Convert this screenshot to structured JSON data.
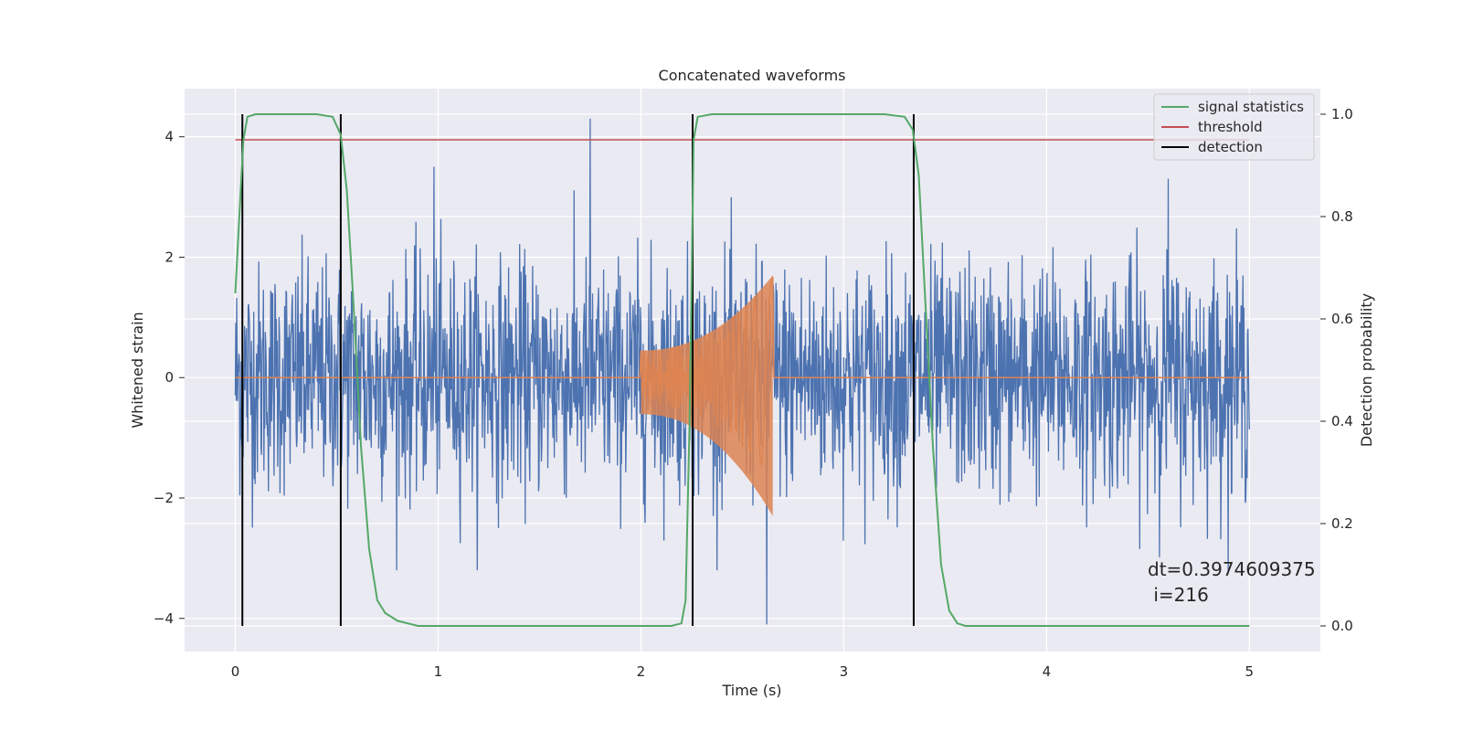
{
  "chart_data": {
    "type": "line",
    "title": "Concatenated waveforms",
    "xlabel": "Time (s)",
    "ylabel": "Whitened strain",
    "ylabel_right": "Detection probability",
    "xlim": [
      -0.25,
      5.35
    ],
    "ylim": [
      -4.55,
      4.8
    ],
    "ylim_right": [
      -0.05,
      1.05
    ],
    "xticks": [
      0,
      1,
      2,
      3,
      4,
      5
    ],
    "yticks": [
      -4,
      -2,
      0,
      2,
      4
    ],
    "yticks_right": [
      0.0,
      0.2,
      0.4,
      0.6,
      0.8,
      1.0
    ],
    "grid": true,
    "legend_position": "top-right",
    "legend": [
      {
        "label": "signal statistics",
        "color": "#55a868"
      },
      {
        "label": "threshold",
        "color": "#c44e52"
      },
      {
        "label": "detection",
        "color": "#000000"
      }
    ],
    "noise_series": {
      "color": "#4c72b0",
      "x_range": [
        0,
        5
      ],
      "typical_amplitude": 1.7,
      "notable_peaks": [
        {
          "x": 1.75,
          "y": 4.3
        },
        {
          "x": 0.98,
          "y": 3.5
        },
        {
          "x": 2.62,
          "y": -4.1
        },
        {
          "x": 4.6,
          "y": 3.3
        }
      ]
    },
    "injected_signal": {
      "color": "#dd8452",
      "start": 2.0,
      "end": 2.65,
      "start_amplitude": 0.45,
      "peak_amplitude": 1.7,
      "peak_min": -2.3
    },
    "series": [
      {
        "name": "signal statistics",
        "axis": "right",
        "color": "#55a868",
        "x": [
          0.0,
          0.02,
          0.04,
          0.06,
          0.1,
          0.2,
          0.4,
          0.48,
          0.52,
          0.55,
          0.58,
          0.62,
          0.66,
          0.7,
          0.74,
          0.8,
          0.9,
          1.0,
          1.5,
          2.0,
          2.15,
          2.2,
          2.22,
          2.24,
          2.26,
          2.28,
          2.35,
          2.5,
          3.2,
          3.3,
          3.34,
          3.37,
          3.4,
          3.44,
          3.48,
          3.52,
          3.56,
          3.6,
          4.0,
          4.5,
          5.0
        ],
        "y": [
          0.65,
          0.8,
          0.95,
          0.995,
          1.0,
          1.0,
          1.0,
          0.995,
          0.96,
          0.85,
          0.65,
          0.35,
          0.15,
          0.05,
          0.025,
          0.01,
          0.0,
          0.0,
          0.0,
          0.0,
          0.0,
          0.005,
          0.05,
          0.4,
          0.95,
          0.995,
          1.0,
          1.0,
          1.0,
          0.995,
          0.97,
          0.88,
          0.65,
          0.35,
          0.12,
          0.03,
          0.005,
          0.0,
          0.0,
          0.0,
          0.0
        ]
      },
      {
        "name": "threshold",
        "axis": "right",
        "color": "#c44e52",
        "x": [
          0,
          5
        ],
        "y": [
          0.95,
          0.95
        ]
      }
    ],
    "detections": [
      0.035,
      0.52,
      2.255,
      3.345
    ],
    "annotation": "dt=0.3974609375\n i=216"
  }
}
